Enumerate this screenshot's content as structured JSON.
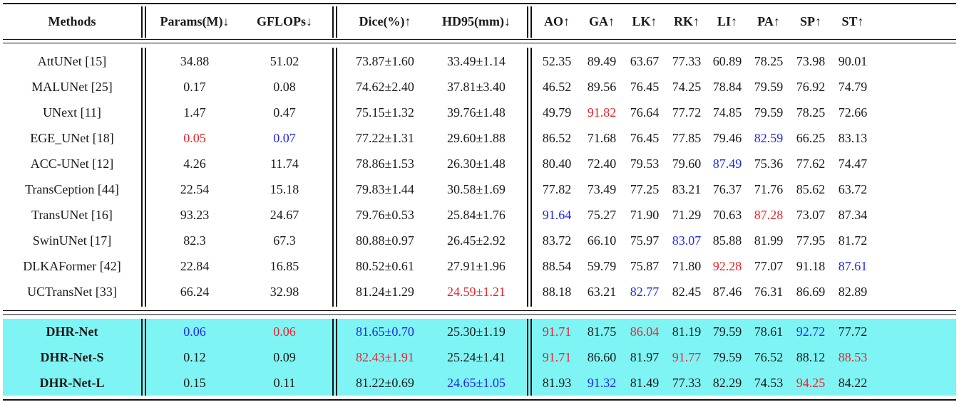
{
  "table": {
    "headers": [
      "Methods",
      "Params(M)↓",
      "GFLOPs↓",
      "Dice(%)↑",
      "HD95(mm)↓",
      "AO↑",
      "GA↑",
      "LK↑",
      "RK↑",
      "LI↑",
      "PA↑",
      "SP↑",
      "ST↑"
    ],
    "rows": [
      {
        "cells": [
          "AttUNet [15]",
          "34.88",
          "51.02",
          "73.87±1.60",
          "33.49±1.14",
          "52.35",
          "89.49",
          "63.67",
          "77.33",
          "60.89",
          "78.25",
          "73.98",
          "90.01"
        ],
        "colors": [
          "",
          "",
          "",
          "",
          "",
          "",
          "",
          "",
          "",
          "",
          "",
          "",
          ""
        ]
      },
      {
        "cells": [
          "MALUNet [25]",
          "0.17",
          "0.08",
          "74.62±2.40",
          "37.81±3.40",
          "46.52",
          "89.56",
          "76.45",
          "74.25",
          "78.84",
          "79.59",
          "76.92",
          "74.79"
        ],
        "colors": [
          "",
          "",
          "",
          "",
          "",
          "",
          "",
          "",
          "",
          "",
          "",
          "",
          ""
        ]
      },
      {
        "cells": [
          "UNext [11]",
          "1.47",
          "0.47",
          "75.15±1.32",
          "39.76±1.48",
          "49.79",
          "91.82",
          "76.64",
          "77.72",
          "74.85",
          "79.59",
          "78.25",
          "72.66"
        ],
        "colors": [
          "",
          "",
          "",
          "",
          "",
          "",
          "red",
          "",
          "",
          "",
          "",
          "",
          ""
        ]
      },
      {
        "cells": [
          "EGE_UNet [18]",
          "0.05",
          "0.07",
          "77.22±1.31",
          "29.60±1.88",
          "86.52",
          "71.68",
          "76.45",
          "77.85",
          "79.46",
          "82.59",
          "66.25",
          "83.13"
        ],
        "colors": [
          "",
          "red",
          "blue",
          "",
          "",
          "",
          "",
          "",
          "",
          "",
          "blue",
          "",
          ""
        ]
      },
      {
        "cells": [
          "ACC-UNet [12]",
          "4.26",
          "11.74",
          "78.86±1.53",
          "26.30±1.48",
          "80.40",
          "72.40",
          "79.53",
          "79.60",
          "87.49",
          "75.36",
          "77.62",
          "74.47"
        ],
        "colors": [
          "",
          "",
          "",
          "",
          "",
          "",
          "",
          "",
          "",
          "blue",
          "",
          "",
          ""
        ]
      },
      {
        "cells": [
          "TransCeption [44]",
          "22.54",
          "15.18",
          "79.83±1.44",
          "30.58±1.69",
          "77.82",
          "73.49",
          "77.25",
          "83.21",
          "76.37",
          "71.76",
          "85.62",
          "63.72"
        ],
        "colors": [
          "",
          "",
          "",
          "",
          "",
          "",
          "",
          "",
          "",
          "",
          "",
          "",
          ""
        ]
      },
      {
        "cells": [
          "TransUNet [16]",
          "93.23",
          "24.67",
          "79.76±0.53",
          "25.84±1.76",
          "91.64",
          "75.27",
          "71.90",
          "71.29",
          "70.63",
          "87.28",
          "73.07",
          "87.34"
        ],
        "colors": [
          "",
          "",
          "",
          "",
          "",
          "blue",
          "",
          "",
          "",
          "",
          "red",
          "",
          ""
        ]
      },
      {
        "cells": [
          "SwinUNet [17]",
          "82.3",
          "67.3",
          "80.88±0.97",
          "26.45±2.92",
          "83.72",
          "66.10",
          "75.97",
          "83.07",
          "85.88",
          "81.99",
          "77.95",
          "81.72"
        ],
        "colors": [
          "",
          "",
          "",
          "",
          "",
          "",
          "",
          "",
          "blue",
          "",
          "",
          "",
          ""
        ]
      },
      {
        "cells": [
          "DLKAFormer [42]",
          "22.84",
          "16.85",
          "80.52±0.61",
          "27.91±1.96",
          "88.54",
          "59.79",
          "75.87",
          "71.80",
          "92.28",
          "77.07",
          "91.18",
          "87.61"
        ],
        "colors": [
          "",
          "",
          "",
          "",
          "",
          "",
          "",
          "",
          "",
          "red",
          "",
          "",
          "blue"
        ]
      },
      {
        "cells": [
          "UCTransNet [33]",
          "66.24",
          "32.98",
          "81.24±1.29",
          "24.59±1.21",
          "88.18",
          "63.21",
          "82.77",
          "82.45",
          "87.46",
          "76.31",
          "86.69",
          "82.89"
        ],
        "colors": [
          "",
          "",
          "",
          "",
          "red",
          "",
          "",
          "blue",
          "",
          "",
          "",
          "",
          ""
        ]
      }
    ],
    "ours": [
      {
        "cells": [
          "DHR-Net",
          "0.06",
          "0.06",
          "81.65±0.70",
          "25.30±1.19",
          "91.71",
          "81.75",
          "86.04",
          "81.19",
          "79.59",
          "78.61",
          "92.72",
          "77.72"
        ],
        "colors": [
          "",
          "blue",
          "red",
          "blue",
          "",
          "red",
          "",
          "red",
          "",
          "",
          "",
          "blue",
          ""
        ]
      },
      {
        "cells": [
          "DHR-Net-S",
          "0.12",
          "0.09",
          "82.43±1.91",
          "25.24±1.41",
          "91.71",
          "86.60",
          "81.97",
          "91.77",
          "79.59",
          "76.52",
          "88.12",
          "88.53"
        ],
        "colors": [
          "",
          "",
          "",
          "red",
          "",
          "red",
          "",
          "",
          "red",
          "",
          "",
          "",
          "red"
        ]
      },
      {
        "cells": [
          "DHR-Net-L",
          "0.15",
          "0.11",
          "81.22±0.69",
          "24.65±1.05",
          "81.93",
          "91.32",
          "81.49",
          "77.33",
          "82.29",
          "74.53",
          "94.25",
          "84.22"
        ],
        "colors": [
          "",
          "",
          "",
          "",
          "blue",
          "",
          "blue",
          "",
          "",
          "",
          "",
          "red",
          ""
        ]
      }
    ],
    "highlight_color": "#7ff4f4",
    "best_color": "#e8232b",
    "second_color": "#1f28ea"
  }
}
